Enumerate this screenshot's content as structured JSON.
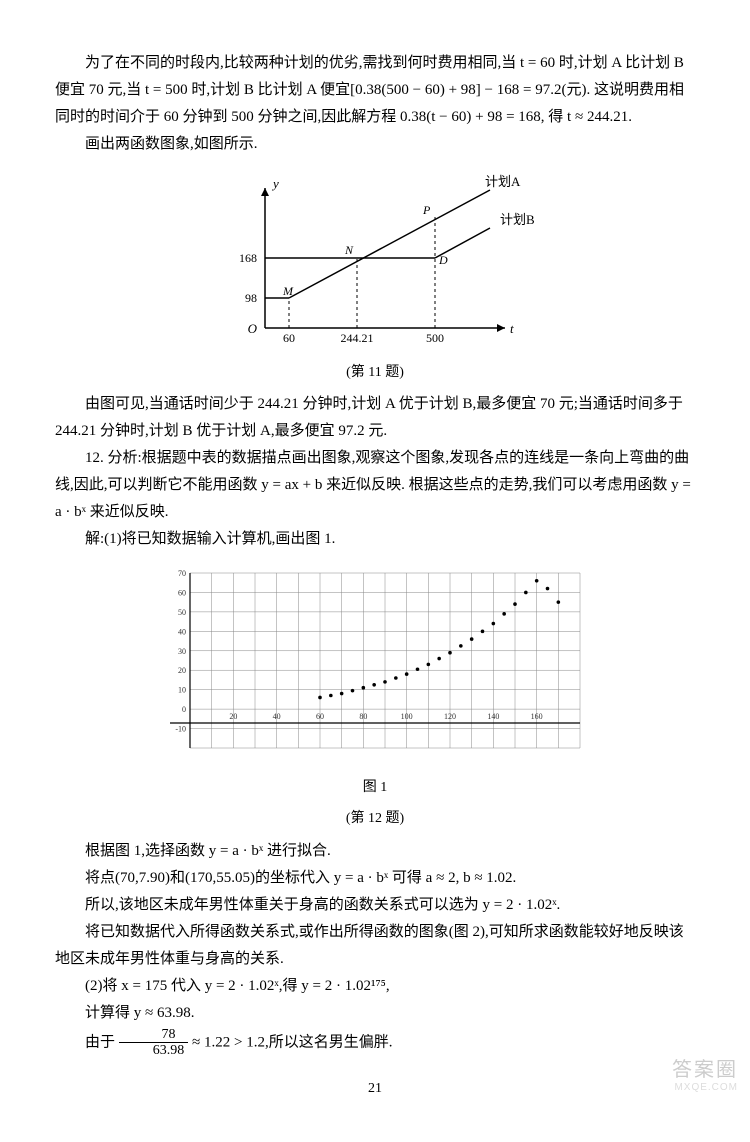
{
  "p1": "为了在不同的时段内,比较两种计划的优劣,需找到何时费用相同,当 t = 60 时,计划 A 比计划 B 便宜 70 元,当 t = 500 时,计划 B 比计划 A 便宜[0.38(500 − 60) + 98] − 168 = 97.2(元). 这说明费用相同时的时间介于 60 分钟到 500 分钟之间,因此解方程 0.38(t − 60) + 98 = 168, 得 t ≈ 244.21.",
  "p2": "画出两函数图象,如图所示.",
  "chart1": {
    "caption": "(第 11 题)",
    "y_label": "y",
    "t_label": "t",
    "origin_label": "O",
    "y_ticks": [
      "98",
      "168"
    ],
    "x_ticks": [
      "60",
      "244.21",
      "500"
    ],
    "series": [
      {
        "label": "计划A",
        "color": "#000"
      },
      {
        "label": "计划B",
        "color": "#000"
      }
    ],
    "points": {
      "M": "M",
      "N": "N",
      "D": "D",
      "P": "P"
    }
  },
  "p3": "由图可见,当通话时间少于 244.21 分钟时,计划 A 优于计划 B,最多便宜 70 元;当通话时间多于 244.21 分钟时,计划 B 优于计划 A,最多便宜 97.2 元.",
  "p4": "12. 分析:根据题中表的数据描点画出图象,观察这个图象,发现各点的连线是一条向上弯曲的曲线,因此,可以判断它不能用函数 y = ax + b 来近似反映. 根据这些点的走势,我们可以考虑用函数 y = a · bˣ 来近似反映.",
  "p5": "解:(1)将已知数据输入计算机,画出图 1.",
  "chart2": {
    "caption_top": "图 1",
    "caption": "(第 12 题)",
    "x_ticks": [
      "20",
      "40",
      "60",
      "80",
      "100",
      "120",
      "140",
      "160"
    ],
    "y_ticks": [
      "-10",
      "0",
      "10",
      "20",
      "30",
      "40",
      "50",
      "60",
      "70"
    ],
    "data_points": [
      [
        60,
        6
      ],
      [
        65,
        7
      ],
      [
        70,
        8
      ],
      [
        75,
        9.5
      ],
      [
        80,
        11
      ],
      [
        85,
        12.5
      ],
      [
        90,
        14
      ],
      [
        95,
        16
      ],
      [
        100,
        18
      ],
      [
        105,
        20.5
      ],
      [
        110,
        23
      ],
      [
        115,
        26
      ],
      [
        120,
        29
      ],
      [
        125,
        32.5
      ],
      [
        130,
        36
      ],
      [
        135,
        40
      ],
      [
        140,
        44
      ],
      [
        145,
        49
      ],
      [
        150,
        54
      ],
      [
        155,
        60
      ],
      [
        160,
        66
      ],
      [
        165,
        62
      ],
      [
        170,
        55
      ]
    ],
    "styling": {
      "grid_color": "#888",
      "axis_color": "#000",
      "point_color": "#000",
      "background": "#fff"
    }
  },
  "p6": "根据图 1,选择函数 y = a · bˣ 进行拟合.",
  "p7": "将点(70,7.90)和(170,55.05)的坐标代入 y = a · bˣ 可得 a ≈ 2, b ≈ 1.02.",
  "p8": "所以,该地区未成年男性体重关于身高的函数关系式可以选为 y = 2 · 1.02ˣ.",
  "p9": "将已知数据代入所得函数关系式,或作出所得函数的图象(图 2),可知所求函数能较好地反映该地区未成年男性体重与身高的关系.",
  "p10": "(2)将 x = 175 代入 y = 2 · 1.02ˣ,得 y = 2 · 1.02¹⁷⁵,",
  "p11": "计算得 y ≈ 63.98.",
  "p12_pre": "由于",
  "frac_num": "78",
  "frac_den": "63.98",
  "p12_post": " ≈ 1.22 > 1.2,所以这名男生偏胖.",
  "page_number": "21",
  "watermark_main": "答案圈",
  "watermark_sub": "MXQE.COM"
}
